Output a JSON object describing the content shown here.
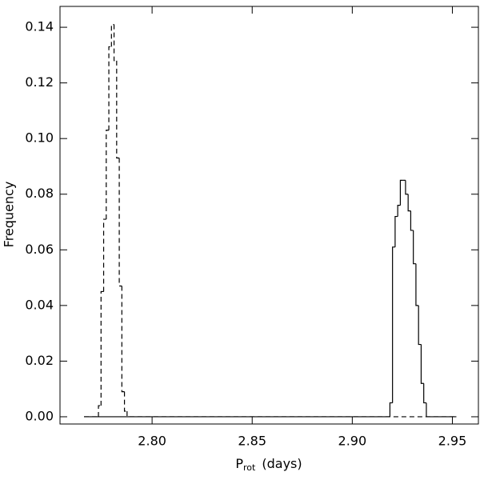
{
  "chart_data": {
    "type": "histogram",
    "xlabel": {
      "main": "P",
      "sub": "rot",
      "unit": "(days)"
    },
    "ylabel": "Frequency",
    "xlim": [
      2.754,
      2.963
    ],
    "ylim": [
      -0.0026,
      0.1475
    ],
    "xticks": [
      {
        "value": 2.8,
        "label": "2.80"
      },
      {
        "value": 2.85,
        "label": "2.85"
      },
      {
        "value": 2.9,
        "label": "2.90"
      },
      {
        "value": 2.95,
        "label": "2.95"
      }
    ],
    "yticks": [
      {
        "value": 0,
        "label": "0.00"
      },
      {
        "value": 0.02,
        "label": "0.02"
      },
      {
        "value": 0.04,
        "label": "0.04"
      },
      {
        "value": 0.06,
        "label": "0.06"
      },
      {
        "value": 0.08,
        "label": "0.08"
      },
      {
        "value": 0.1,
        "label": "0.10"
      },
      {
        "value": 0.12,
        "label": "0.12"
      },
      {
        "value": 0.14,
        "label": "0.14"
      }
    ],
    "series": [
      {
        "color": "#000000",
        "dash": true,
        "bins": [
          2.766,
          2.7732,
          2.7745,
          2.7758,
          2.7771,
          2.7784,
          2.7797,
          2.781,
          2.7823,
          2.7836,
          2.7849,
          2.7862,
          2.7875,
          2.952
        ],
        "values": [
          0,
          0.004,
          0.045,
          0.071,
          0.103,
          0.133,
          0.141,
          0.128,
          0.093,
          0.047,
          0.009,
          0.002,
          0
        ]
      },
      {
        "color": "#000000",
        "dash": false,
        "bins": [
          2.766,
          2.9188,
          2.9201,
          2.9214,
          2.9227,
          2.924,
          2.9253,
          2.9266,
          2.9279,
          2.9292,
          2.9305,
          2.9318,
          2.9331,
          2.9344,
          2.9357,
          2.937,
          2.952
        ],
        "values": [
          0,
          0.005,
          0.061,
          0.072,
          0.076,
          0.085,
          0.085,
          0.08,
          0.074,
          0.067,
          0.055,
          0.04,
          0.026,
          0.012,
          0.005,
          0
        ]
      }
    ]
  }
}
